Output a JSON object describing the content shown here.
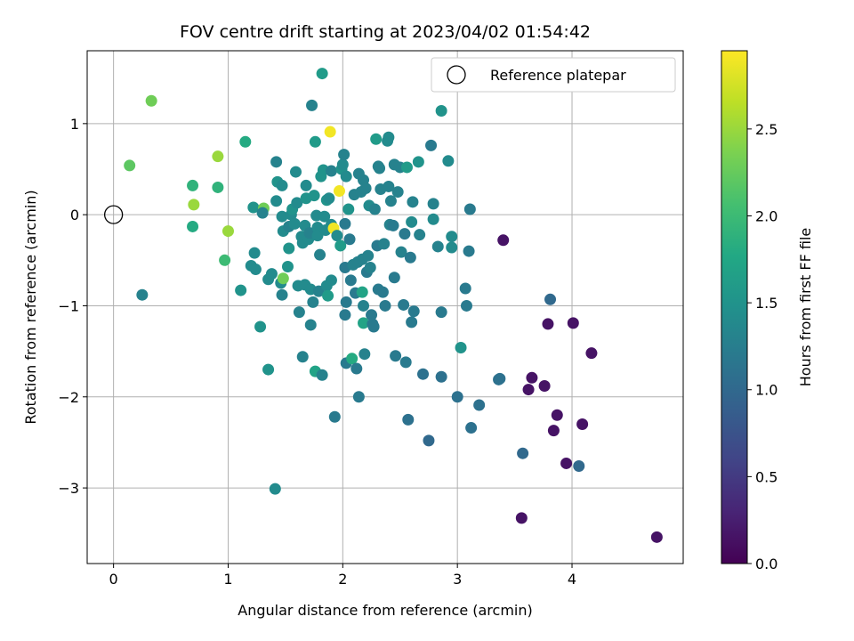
{
  "chart_data": {
    "type": "scatter",
    "title": "FOV centre drift starting at 2023/04/02 01:54:42",
    "xlabel": "Angular distance from reference (arcmin)",
    "ylabel": "Rotation from reference (arcmin)",
    "colorbar_label": "Hours from first FF file",
    "xlim": [
      -0.23,
      4.97
    ],
    "ylim": [
      -3.83,
      1.8
    ],
    "clim": [
      0.0,
      2.95
    ],
    "x_ticks": [
      0,
      1,
      2,
      3,
      4
    ],
    "y_ticks": [
      -3,
      -2,
      -1,
      0,
      1
    ],
    "colorbar_ticks": [
      0.0,
      0.5,
      1.0,
      1.5,
      2.0,
      2.5
    ],
    "grid": true,
    "colormap": "viridis",
    "legend": {
      "location": "top-right",
      "entries": [
        "Reference platepar"
      ]
    },
    "reference_point": {
      "x": 0,
      "y": 0
    },
    "points": [
      {
        "x": 0.14,
        "y": 0.54,
        "c": 2.2
      },
      {
        "x": 0.33,
        "y": 1.25,
        "c": 2.3
      },
      {
        "x": 0.25,
        "y": -0.88,
        "c": 1.3
      },
      {
        "x": 0.69,
        "y": 0.32,
        "c": 1.9
      },
      {
        "x": 0.7,
        "y": 0.11,
        "c": 2.5
      },
      {
        "x": 0.69,
        "y": -0.13,
        "c": 1.8
      },
      {
        "x": 0.91,
        "y": 0.64,
        "c": 2.5
      },
      {
        "x": 0.91,
        "y": 0.3,
        "c": 1.9
      },
      {
        "x": 1.0,
        "y": -0.18,
        "c": 2.5
      },
      {
        "x": 0.97,
        "y": -0.5,
        "c": 2.0
      },
      {
        "x": 1.15,
        "y": 0.8,
        "c": 1.8
      },
      {
        "x": 1.11,
        "y": -0.83,
        "c": 1.5
      },
      {
        "x": 1.22,
        "y": 0.08,
        "c": 1.5
      },
      {
        "x": 1.23,
        "y": -0.42,
        "c": 1.4
      },
      {
        "x": 1.2,
        "y": -0.56,
        "c": 1.4
      },
      {
        "x": 1.24,
        "y": -0.6,
        "c": 1.4
      },
      {
        "x": 1.28,
        "y": -1.23,
        "c": 1.5
      },
      {
        "x": 1.31,
        "y": 0.07,
        "c": 2.3
      },
      {
        "x": 1.3,
        "y": 0.02,
        "c": 1.3
      },
      {
        "x": 1.35,
        "y": -0.71,
        "c": 1.4
      },
      {
        "x": 1.35,
        "y": -1.7,
        "c": 1.5
      },
      {
        "x": 1.38,
        "y": -0.65,
        "c": 1.4
      },
      {
        "x": 1.41,
        "y": -3.01,
        "c": 1.4
      },
      {
        "x": 1.42,
        "y": 0.58,
        "c": 1.3
      },
      {
        "x": 1.43,
        "y": 0.36,
        "c": 1.5
      },
      {
        "x": 1.42,
        "y": 0.15,
        "c": 1.4
      },
      {
        "x": 1.47,
        "y": 0.32,
        "c": 1.4
      },
      {
        "x": 1.47,
        "y": -0.02,
        "c": 1.4
      },
      {
        "x": 1.48,
        "y": -0.18,
        "c": 1.4
      },
      {
        "x": 1.46,
        "y": -0.75,
        "c": 1.4
      },
      {
        "x": 1.47,
        "y": -0.88,
        "c": 1.3
      },
      {
        "x": 1.48,
        "y": -0.7,
        "c": 2.3
      },
      {
        "x": 1.52,
        "y": -0.57,
        "c": 1.5
      },
      {
        "x": 1.53,
        "y": -0.37,
        "c": 1.5
      },
      {
        "x": 1.53,
        "y": -0.13,
        "c": 1.3
      },
      {
        "x": 1.55,
        "y": 0.0,
        "c": 1.4
      },
      {
        "x": 1.56,
        "y": 0.06,
        "c": 1.5
      },
      {
        "x": 1.58,
        "y": -0.1,
        "c": 1.4
      },
      {
        "x": 1.59,
        "y": 0.47,
        "c": 1.4
      },
      {
        "x": 1.6,
        "y": 0.13,
        "c": 1.4
      },
      {
        "x": 1.61,
        "y": -0.78,
        "c": 1.4
      },
      {
        "x": 1.62,
        "y": -1.07,
        "c": 1.3
      },
      {
        "x": 1.64,
        "y": -0.24,
        "c": 1.4
      },
      {
        "x": 1.65,
        "y": -0.31,
        "c": 1.4
      },
      {
        "x": 1.65,
        "y": -1.56,
        "c": 1.3
      },
      {
        "x": 1.67,
        "y": -0.12,
        "c": 1.4
      },
      {
        "x": 1.68,
        "y": 0.32,
        "c": 1.4
      },
      {
        "x": 1.68,
        "y": 0.18,
        "c": 1.5
      },
      {
        "x": 1.67,
        "y": -0.77,
        "c": 1.4
      },
      {
        "x": 1.7,
        "y": -0.27,
        "c": 1.4
      },
      {
        "x": 1.71,
        "y": -0.2,
        "c": 1.3
      },
      {
        "x": 1.72,
        "y": -0.82,
        "c": 1.4
      },
      {
        "x": 1.72,
        "y": -1.21,
        "c": 1.3
      },
      {
        "x": 1.73,
        "y": 1.2,
        "c": 1.3
      },
      {
        "x": 1.74,
        "y": -0.96,
        "c": 1.3
      },
      {
        "x": 1.75,
        "y": 0.21,
        "c": 1.5
      },
      {
        "x": 1.76,
        "y": 0.8,
        "c": 1.6
      },
      {
        "x": 1.76,
        "y": -1.72,
        "c": 1.7
      },
      {
        "x": 1.77,
        "y": -0.01,
        "c": 1.4
      },
      {
        "x": 1.78,
        "y": -0.14,
        "c": 1.4
      },
      {
        "x": 1.78,
        "y": -0.23,
        "c": 1.4
      },
      {
        "x": 1.79,
        "y": -0.84,
        "c": 1.3
      },
      {
        "x": 1.8,
        "y": -0.44,
        "c": 1.3
      },
      {
        "x": 1.81,
        "y": 0.42,
        "c": 1.5
      },
      {
        "x": 1.82,
        "y": 1.55,
        "c": 1.6
      },
      {
        "x": 1.82,
        "y": -1.76,
        "c": 1.3
      },
      {
        "x": 1.83,
        "y": 0.49,
        "c": 1.5
      },
      {
        "x": 1.84,
        "y": -0.02,
        "c": 1.4
      },
      {
        "x": 1.85,
        "y": -0.17,
        "c": 1.4
      },
      {
        "x": 1.86,
        "y": -0.78,
        "c": 1.4
      },
      {
        "x": 1.86,
        "y": 0.16,
        "c": 1.5
      },
      {
        "x": 1.87,
        "y": -0.89,
        "c": 1.6
      },
      {
        "x": 1.88,
        "y": 0.18,
        "c": 1.4
      },
      {
        "x": 1.89,
        "y": 0.91,
        "c": 2.9
      },
      {
        "x": 1.9,
        "y": 0.48,
        "c": 1.3
      },
      {
        "x": 1.9,
        "y": -0.11,
        "c": 1.4
      },
      {
        "x": 1.9,
        "y": -0.72,
        "c": 1.4
      },
      {
        "x": 1.92,
        "y": -0.15,
        "c": 2.9
      },
      {
        "x": 1.93,
        "y": -2.22,
        "c": 1.2
      },
      {
        "x": 1.95,
        "y": -0.23,
        "c": 1.4
      },
      {
        "x": 1.97,
        "y": 0.26,
        "c": 2.9
      },
      {
        "x": 1.98,
        "y": -0.34,
        "c": 1.6
      },
      {
        "x": 1.99,
        "y": 0.5,
        "c": 1.5
      },
      {
        "x": 2.0,
        "y": 0.55,
        "c": 1.4
      },
      {
        "x": 2.01,
        "y": 0.66,
        "c": 1.3
      },
      {
        "x": 2.02,
        "y": -0.1,
        "c": 1.2
      },
      {
        "x": 2.02,
        "y": -0.58,
        "c": 1.2
      },
      {
        "x": 2.02,
        "y": -1.1,
        "c": 1.2
      },
      {
        "x": 2.03,
        "y": 0.42,
        "c": 1.4
      },
      {
        "x": 2.03,
        "y": -0.96,
        "c": 1.2
      },
      {
        "x": 2.03,
        "y": -1.63,
        "c": 1.2
      },
      {
        "x": 2.05,
        "y": 0.06,
        "c": 1.5
      },
      {
        "x": 2.06,
        "y": -0.27,
        "c": 1.2
      },
      {
        "x": 2.07,
        "y": -0.72,
        "c": 1.2
      },
      {
        "x": 2.08,
        "y": -1.58,
        "c": 1.8
      },
      {
        "x": 2.09,
        "y": -0.55,
        "c": 1.3
      },
      {
        "x": 2.1,
        "y": 0.22,
        "c": 1.3
      },
      {
        "x": 2.11,
        "y": -0.86,
        "c": 1.2
      },
      {
        "x": 2.12,
        "y": -1.69,
        "c": 1.2
      },
      {
        "x": 2.13,
        "y": -0.52,
        "c": 1.3
      },
      {
        "x": 2.14,
        "y": 0.45,
        "c": 1.3
      },
      {
        "x": 2.14,
        "y": -2.0,
        "c": 1.2
      },
      {
        "x": 2.16,
        "y": 0.25,
        "c": 1.3
      },
      {
        "x": 2.17,
        "y": -0.49,
        "c": 1.3
      },
      {
        "x": 2.17,
        "y": -0.85,
        "c": 1.7
      },
      {
        "x": 2.18,
        "y": 0.38,
        "c": 1.3
      },
      {
        "x": 2.18,
        "y": -1.0,
        "c": 1.3
      },
      {
        "x": 2.18,
        "y": -1.19,
        "c": 1.7
      },
      {
        "x": 2.19,
        "y": -1.53,
        "c": 1.3
      },
      {
        "x": 2.2,
        "y": 0.29,
        "c": 1.3
      },
      {
        "x": 2.21,
        "y": -0.63,
        "c": 1.2
      },
      {
        "x": 2.22,
        "y": -0.45,
        "c": 1.3
      },
      {
        "x": 2.23,
        "y": 0.1,
        "c": 1.4
      },
      {
        "x": 2.24,
        "y": -0.58,
        "c": 1.3
      },
      {
        "x": 2.25,
        "y": -1.1,
        "c": 1.2
      },
      {
        "x": 2.26,
        "y": -1.2,
        "c": 1.2
      },
      {
        "x": 2.27,
        "y": -1.23,
        "c": 1.2
      },
      {
        "x": 2.28,
        "y": 0.06,
        "c": 1.3
      },
      {
        "x": 2.29,
        "y": 0.83,
        "c": 1.6
      },
      {
        "x": 2.3,
        "y": -0.34,
        "c": 1.2
      },
      {
        "x": 2.31,
        "y": -0.82,
        "c": 1.2
      },
      {
        "x": 2.31,
        "y": 0.53,
        "c": 1.3
      },
      {
        "x": 2.32,
        "y": 0.51,
        "c": 1.3
      },
      {
        "x": 2.33,
        "y": 0.28,
        "c": 1.3
      },
      {
        "x": 2.35,
        "y": -0.85,
        "c": 1.2
      },
      {
        "x": 2.36,
        "y": -0.32,
        "c": 1.3
      },
      {
        "x": 2.37,
        "y": -1.0,
        "c": 1.2
      },
      {
        "x": 2.39,
        "y": 0.81,
        "c": 1.4
      },
      {
        "x": 2.4,
        "y": 0.85,
        "c": 1.4
      },
      {
        "x": 2.4,
        "y": 0.31,
        "c": 1.3
      },
      {
        "x": 2.41,
        "y": -0.11,
        "c": 1.3
      },
      {
        "x": 2.42,
        "y": 0.15,
        "c": 1.3
      },
      {
        "x": 2.44,
        "y": -0.12,
        "c": 1.2
      },
      {
        "x": 2.45,
        "y": 0.55,
        "c": 1.3
      },
      {
        "x": 2.45,
        "y": -0.69,
        "c": 1.2
      },
      {
        "x": 2.46,
        "y": -1.55,
        "c": 1.2
      },
      {
        "x": 2.48,
        "y": 0.25,
        "c": 1.3
      },
      {
        "x": 2.5,
        "y": 0.52,
        "c": 1.3
      },
      {
        "x": 2.51,
        "y": -0.41,
        "c": 1.3
      },
      {
        "x": 2.53,
        "y": -0.99,
        "c": 1.2
      },
      {
        "x": 2.54,
        "y": -0.21,
        "c": 1.2
      },
      {
        "x": 2.55,
        "y": -1.62,
        "c": 1.2
      },
      {
        "x": 2.56,
        "y": 0.52,
        "c": 1.6
      },
      {
        "x": 2.57,
        "y": -2.25,
        "c": 1.1
      },
      {
        "x": 2.59,
        "y": -0.47,
        "c": 1.2
      },
      {
        "x": 2.6,
        "y": -1.18,
        "c": 1.2
      },
      {
        "x": 2.6,
        "y": -0.08,
        "c": 1.4
      },
      {
        "x": 2.61,
        "y": 0.14,
        "c": 1.3
      },
      {
        "x": 2.62,
        "y": -1.06,
        "c": 1.2
      },
      {
        "x": 2.66,
        "y": 0.58,
        "c": 1.5
      },
      {
        "x": 2.67,
        "y": -0.22,
        "c": 1.3
      },
      {
        "x": 2.7,
        "y": -1.75,
        "c": 1.1
      },
      {
        "x": 2.75,
        "y": -2.48,
        "c": 1.0
      },
      {
        "x": 2.77,
        "y": 0.76,
        "c": 1.2
      },
      {
        "x": 2.79,
        "y": 0.12,
        "c": 1.3
      },
      {
        "x": 2.79,
        "y": -0.05,
        "c": 1.4
      },
      {
        "x": 2.83,
        "y": -0.35,
        "c": 1.3
      },
      {
        "x": 2.86,
        "y": 1.14,
        "c": 1.5
      },
      {
        "x": 2.86,
        "y": -1.07,
        "c": 1.2
      },
      {
        "x": 2.86,
        "y": -1.78,
        "c": 1.1
      },
      {
        "x": 2.92,
        "y": 0.59,
        "c": 1.4
      },
      {
        "x": 2.95,
        "y": -0.24,
        "c": 1.4
      },
      {
        "x": 2.95,
        "y": -0.36,
        "c": 1.4
      },
      {
        "x": 3.0,
        "y": -2.0,
        "c": 1.1
      },
      {
        "x": 3.03,
        "y": -1.46,
        "c": 1.5
      },
      {
        "x": 3.07,
        "y": -0.81,
        "c": 1.2
      },
      {
        "x": 3.08,
        "y": -1.0,
        "c": 1.2
      },
      {
        "x": 3.1,
        "y": -0.4,
        "c": 1.2
      },
      {
        "x": 3.11,
        "y": 0.06,
        "c": 1.2
      },
      {
        "x": 3.12,
        "y": -2.34,
        "c": 1.1
      },
      {
        "x": 3.19,
        "y": -2.09,
        "c": 1.1
      },
      {
        "x": 3.36,
        "y": -1.81,
        "c": 1.1
      },
      {
        "x": 3.37,
        "y": -1.8,
        "c": 1.1
      },
      {
        "x": 3.4,
        "y": -0.28,
        "c": 0.15
      },
      {
        "x": 3.56,
        "y": -3.33,
        "c": 0.15
      },
      {
        "x": 3.57,
        "y": -2.62,
        "c": 1.0
      },
      {
        "x": 3.62,
        "y": -1.92,
        "c": 0.15
      },
      {
        "x": 3.65,
        "y": -1.79,
        "c": 0.15
      },
      {
        "x": 3.76,
        "y": -1.88,
        "c": 0.15
      },
      {
        "x": 3.79,
        "y": -1.2,
        "c": 0.15
      },
      {
        "x": 3.81,
        "y": -0.93,
        "c": 1.0
      },
      {
        "x": 3.84,
        "y": -2.37,
        "c": 0.15
      },
      {
        "x": 3.87,
        "y": -2.2,
        "c": 0.15
      },
      {
        "x": 3.95,
        "y": -2.73,
        "c": 0.15
      },
      {
        "x": 4.01,
        "y": -1.19,
        "c": 0.15
      },
      {
        "x": 4.06,
        "y": -2.76,
        "c": 1.0
      },
      {
        "x": 4.09,
        "y": -2.3,
        "c": 0.15
      },
      {
        "x": 4.17,
        "y": -1.52,
        "c": 0.15
      },
      {
        "x": 4.74,
        "y": -3.54,
        "c": 0.15
      }
    ]
  }
}
